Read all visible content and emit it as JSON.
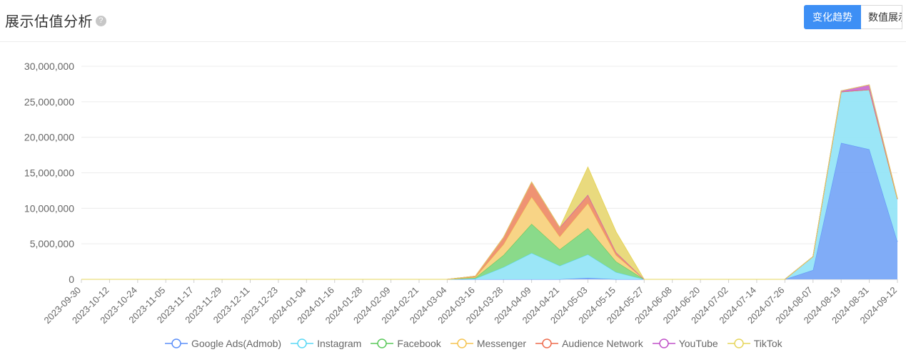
{
  "header": {
    "title": "展示估值分析",
    "help_icon": "question-circle-icon",
    "tabs": [
      {
        "label": "变化趋势",
        "active": true
      },
      {
        "label": "数值展示",
        "active": false
      }
    ]
  },
  "colors": {
    "accent": "#3d8ff5"
  },
  "chart_data": {
    "type": "area",
    "stacked": true,
    "x": [
      "2023-09-30",
      "2023-10-12",
      "2023-10-24",
      "2023-11-05",
      "2023-11-17",
      "2023-11-29",
      "2023-12-11",
      "2023-12-23",
      "2024-01-04",
      "2024-01-16",
      "2024-01-28",
      "2024-02-09",
      "2024-02-21",
      "2024-03-04",
      "2024-03-16",
      "2024-03-28",
      "2024-04-09",
      "2024-04-21",
      "2024-05-03",
      "2024-05-15",
      "2024-05-27",
      "2024-06-08",
      "2024-06-20",
      "2024-07-02",
      "2024-07-14",
      "2024-07-26",
      "2024-08-07",
      "2024-08-19",
      "2024-08-31",
      "2024-09-12"
    ],
    "ylim": [
      0,
      30000000
    ],
    "yticks": [
      0,
      5000000,
      10000000,
      15000000,
      20000000,
      25000000,
      30000000
    ],
    "ytick_labels": [
      "0",
      "5,000,000",
      "10,000,000",
      "15,000,000",
      "20,000,000",
      "25,000,000",
      "30,000,000"
    ],
    "grid": true,
    "legend_position": "bottom",
    "series": [
      {
        "name": "Google Ads(Admob)",
        "color": "#5b8ff9",
        "fill": "#79a8f7",
        "values": [
          0,
          0,
          0,
          0,
          0,
          0,
          0,
          0,
          0,
          0,
          0,
          0,
          0,
          0,
          0,
          0,
          0,
          0,
          200000,
          0,
          0,
          0,
          0,
          0,
          0,
          0,
          1300000,
          19200000,
          18300000,
          5300000
        ]
      },
      {
        "name": "Instagram",
        "color": "#5ad8f5",
        "fill": "#96e5f7",
        "values": [
          0,
          0,
          0,
          0,
          0,
          0,
          0,
          0,
          0,
          0,
          0,
          0,
          0,
          0,
          100000,
          1700000,
          3700000,
          1900000,
          3300000,
          1000000,
          0,
          0,
          0,
          0,
          0,
          0,
          1900000,
          7200000,
          8400000,
          6000000
        ]
      },
      {
        "name": "Facebook",
        "color": "#5ac85a",
        "fill": "#84d884",
        "values": [
          0,
          0,
          0,
          0,
          0,
          0,
          0,
          0,
          0,
          0,
          0,
          0,
          0,
          0,
          100000,
          1700000,
          4100000,
          2300000,
          3700000,
          1500000,
          0,
          0,
          0,
          0,
          0,
          0,
          0,
          0,
          0,
          0
        ]
      },
      {
        "name": "Messenger",
        "color": "#f5c451",
        "fill": "#f8d27f",
        "values": [
          0,
          0,
          0,
          0,
          0,
          0,
          0,
          0,
          0,
          0,
          0,
          0,
          0,
          0,
          100000,
          1500000,
          3800000,
          1800000,
          3500000,
          900000,
          0,
          0,
          0,
          0,
          0,
          0,
          0,
          0,
          0,
          0
        ]
      },
      {
        "name": "Audience Network",
        "color": "#ee6b4d",
        "fill": "#ee8d6c",
        "values": [
          0,
          0,
          0,
          0,
          0,
          0,
          0,
          0,
          0,
          0,
          0,
          0,
          0,
          0,
          150000,
          1000000,
          2100000,
          1300000,
          1200000,
          400000,
          0,
          0,
          0,
          0,
          0,
          0,
          0,
          0,
          0,
          0
        ]
      },
      {
        "name": "YouTube",
        "color": "#c050c8",
        "fill": "#cb6fd0",
        "values": [
          0,
          0,
          0,
          0,
          0,
          0,
          0,
          0,
          0,
          0,
          0,
          0,
          0,
          0,
          0,
          0,
          0,
          0,
          0,
          0,
          0,
          0,
          0,
          0,
          0,
          0,
          0,
          150000,
          700000,
          100000
        ]
      },
      {
        "name": "TikTok",
        "color": "#e6d55b",
        "fill": "#e8d877",
        "values": [
          0,
          0,
          0,
          0,
          0,
          0,
          0,
          0,
          0,
          0,
          0,
          0,
          0,
          0,
          0,
          0,
          0,
          0,
          3900000,
          2900000,
          0,
          0,
          0,
          0,
          0,
          0,
          0,
          0,
          0,
          0
        ]
      }
    ]
  }
}
